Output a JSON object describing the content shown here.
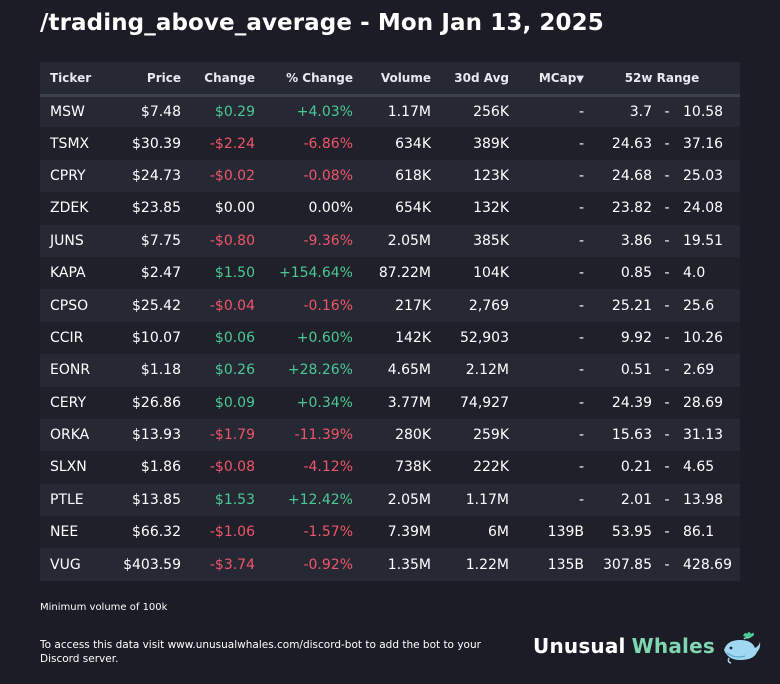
{
  "header": {
    "title": "/trading_above_average - Mon Jan 13, 2025"
  },
  "table": {
    "columns": {
      "ticker": "Ticker",
      "price": "Price",
      "change": "Change",
      "pct_change": "% Change",
      "volume": "Volume",
      "avg30": "30d Avg",
      "mcap": "MCap",
      "mcap_sort_icon": "▼",
      "range": "52w Range"
    },
    "rows": [
      {
        "ticker": "MSW",
        "price": "$7.48",
        "change": "$0.29",
        "pct": "+4.03%",
        "dir": "pos",
        "volume": "1.17M",
        "avg30": "256K",
        "mcap": "-",
        "low": "3.7",
        "sep": "-",
        "high": "10.58"
      },
      {
        "ticker": "TSMX",
        "price": "$30.39",
        "change": "-$2.24",
        "pct": "-6.86%",
        "dir": "neg",
        "volume": "634K",
        "avg30": "389K",
        "mcap": "-",
        "low": "24.63",
        "sep": "-",
        "high": "37.16"
      },
      {
        "ticker": "CPRY",
        "price": "$24.73",
        "change": "-$0.02",
        "pct": "-0.08%",
        "dir": "neg",
        "volume": "618K",
        "avg30": "123K",
        "mcap": "-",
        "low": "24.68",
        "sep": "-",
        "high": "25.03"
      },
      {
        "ticker": "ZDEK",
        "price": "$23.85",
        "change": "$0.00",
        "pct": "0.00%",
        "dir": "neu",
        "volume": "654K",
        "avg30": "132K",
        "mcap": "-",
        "low": "23.82",
        "sep": "-",
        "high": "24.08"
      },
      {
        "ticker": "JUNS",
        "price": "$7.75",
        "change": "-$0.80",
        "pct": "-9.36%",
        "dir": "neg",
        "volume": "2.05M",
        "avg30": "385K",
        "mcap": "-",
        "low": "3.86",
        "sep": "-",
        "high": "19.51"
      },
      {
        "ticker": "KAPA",
        "price": "$2.47",
        "change": "$1.50",
        "pct": "+154.64%",
        "dir": "pos",
        "volume": "87.22M",
        "avg30": "104K",
        "mcap": "-",
        "low": "0.85",
        "sep": "-",
        "high": "4.0"
      },
      {
        "ticker": "CPSO",
        "price": "$25.42",
        "change": "-$0.04",
        "pct": "-0.16%",
        "dir": "neg",
        "volume": "217K",
        "avg30": "2,769",
        "mcap": "-",
        "low": "25.21",
        "sep": "-",
        "high": "25.6"
      },
      {
        "ticker": "CCIR",
        "price": "$10.07",
        "change": "$0.06",
        "pct": "+0.60%",
        "dir": "pos",
        "volume": "142K",
        "avg30": "52,903",
        "mcap": "-",
        "low": "9.92",
        "sep": "-",
        "high": "10.26"
      },
      {
        "ticker": "EONR",
        "price": "$1.18",
        "change": "$0.26",
        "pct": "+28.26%",
        "dir": "pos",
        "volume": "4.65M",
        "avg30": "2.12M",
        "mcap": "-",
        "low": "0.51",
        "sep": "-",
        "high": "2.69"
      },
      {
        "ticker": "CERY",
        "price": "$26.86",
        "change": "$0.09",
        "pct": "+0.34%",
        "dir": "pos",
        "volume": "3.77M",
        "avg30": "74,927",
        "mcap": "-",
        "low": "24.39",
        "sep": "-",
        "high": "28.69"
      },
      {
        "ticker": "ORKA",
        "price": "$13.93",
        "change": "-$1.79",
        "pct": "-11.39%",
        "dir": "neg",
        "volume": "280K",
        "avg30": "259K",
        "mcap": "-",
        "low": "15.63",
        "sep": "-",
        "high": "31.13"
      },
      {
        "ticker": "SLXN",
        "price": "$1.86",
        "change": "-$0.08",
        "pct": "-4.12%",
        "dir": "neg",
        "volume": "738K",
        "avg30": "222K",
        "mcap": "-",
        "low": "0.21",
        "sep": "-",
        "high": "4.65"
      },
      {
        "ticker": "PTLE",
        "price": "$13.85",
        "change": "$1.53",
        "pct": "+12.42%",
        "dir": "pos",
        "volume": "2.05M",
        "avg30": "1.17M",
        "mcap": "-",
        "low": "2.01",
        "sep": "-",
        "high": "13.98"
      },
      {
        "ticker": "NEE",
        "price": "$66.32",
        "change": "-$1.06",
        "pct": "-1.57%",
        "dir": "neg",
        "volume": "7.39M",
        "avg30": "6M",
        "mcap": "139B",
        "low": "53.95",
        "sep": "-",
        "high": "86.1"
      },
      {
        "ticker": "VUG",
        "price": "$403.59",
        "change": "-$3.74",
        "pct": "-0.92%",
        "dir": "neg",
        "volume": "1.35M",
        "avg30": "1.22M",
        "mcap": "135B",
        "low": "307.85",
        "sep": "-",
        "high": "428.69"
      }
    ]
  },
  "note": "Minimum volume of 100k",
  "footer": {
    "text": "To access this data visit www.unusualwhales.com/discord-bot to add the bot to your Discord server."
  },
  "brand": {
    "word1": "Unusual",
    "word2": "Whales",
    "icon": "whale-icon"
  },
  "colors": {
    "background": "#1b1c25",
    "row_odd": "#262834",
    "row_even": "#1f2029",
    "positive": "#4bc994",
    "negative": "#f0556a",
    "brand_accent": "#7fd6b0"
  }
}
